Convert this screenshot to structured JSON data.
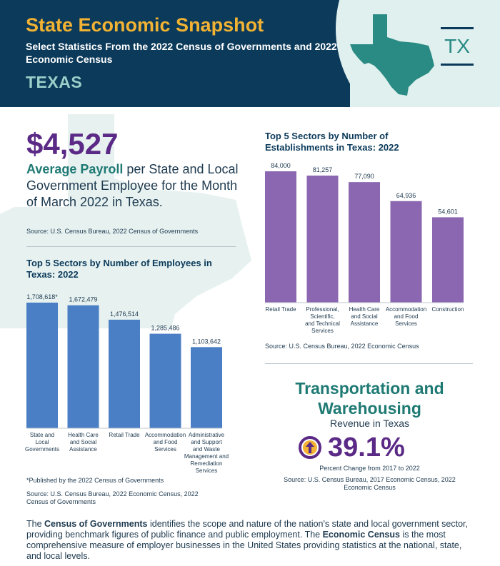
{
  "header": {
    "title": "State Economic Snapshot",
    "subtitle": "Select Statistics From the 2022 Census of Governments and 2022 Economic Census",
    "state_name": "TEXAS",
    "state_abbr": "TX",
    "colors": {
      "navy": "#0b3a5a",
      "gold": "#f2b233",
      "teal": "#2a8a84",
      "light_teal": "#dff0ee"
    }
  },
  "payroll": {
    "value": "$4,527",
    "highlight": "Average Payroll",
    "rest": " per State and Local Government Employee for the Month of March 2022 in Texas.",
    "source": "Source: U.S. Census Bureau, 2022 Census of Governments"
  },
  "employees": {
    "title": "Top 5 Sectors by Number of Employees in Texas: 2022",
    "note": "*Published by the 2022 Census of Governments",
    "source": "Source: U.S. Census Bureau, 2022 Economic Census, 2022 Census of Governments"
  },
  "establishments": {
    "title": "Top 5 Sectors by Number of Establishments in Texas: 2022",
    "source": "Source: U.S. Census Bureau, 2022 Economic Census"
  },
  "transport": {
    "title_line1": "Transportation and",
    "title_line2": "Warehousing",
    "subtitle": "Revenue in Texas",
    "pct": "39.1%",
    "pct_label": "Percent Change from 2017 to 2022",
    "source": "Source: U.S. Census Bureau, 2017 Economic Census, 2022 Economic Census",
    "icon": "up-arrow-circle-icon",
    "colors": {
      "purple": "#5b2a86",
      "arrow": "#f2b233"
    }
  },
  "footer": {
    "b1": "Census of Governments",
    "p1_pre": "The ",
    "p1": " identifies the scope and nature of the nation's state and local government sector, providing benchmark figures of public finance and public employment. The ",
    "b2": "Economic Census",
    "p2": " is the most comprehensive measure of employer businesses in the United States providing statistics at the national, state, and local levels."
  },
  "chart_data": [
    {
      "type": "bar",
      "title": "Top 5 Sectors by Number of Employees in Texas: 2022",
      "categories": [
        "State and Local Governments",
        "Health Care and Social Assistance",
        "Retail Trade",
        "Accommodation and Food Services",
        "Administrative and Support and Waste Management and Remediation Services"
      ],
      "category_lines": [
        [
          "State and",
          "Local",
          "Governments"
        ],
        [
          "Health Care",
          "and Social",
          "Assistance"
        ],
        [
          "Retail Trade"
        ],
        [
          "Accommodation",
          "and Food",
          "Services"
        ],
        [
          "Administrative",
          "and Support",
          "and Waste",
          "Management and",
          "Remediation",
          "Services"
        ]
      ],
      "values": [
        1708618,
        1672479,
        1476514,
        1285486,
        1103642
      ],
      "value_labels": [
        "1,708,618*",
        "1,672,479",
        "1,476,514",
        "1,285,486",
        "1,103,642"
      ],
      "ylim": [
        0,
        1708618
      ],
      "color": "#4a7fc6",
      "grid": false
    },
    {
      "type": "bar",
      "title": "Top 5 Sectors by Number of Establishments in Texas: 2022",
      "categories": [
        "Retail Trade",
        "Professional, Scientific, and Technical Services",
        "Health Care and Social Assistance",
        "Accommodation and Food Services",
        "Construction"
      ],
      "category_lines": [
        [
          "Retail Trade"
        ],
        [
          "Professional,",
          "Scientific,",
          "and Technical",
          "Services"
        ],
        [
          "Health Care",
          "and Social",
          "Assistance"
        ],
        [
          "Accommodation",
          "and Food",
          "Services"
        ],
        [
          "Construction"
        ]
      ],
      "values": [
        84000,
        81257,
        77090,
        64936,
        54601
      ],
      "value_labels": [
        "84,000",
        "81,257",
        "77,090",
        "64,936",
        "54,601"
      ],
      "ylim": [
        0,
        84000
      ],
      "color": "#8b67b1",
      "grid": false
    }
  ]
}
